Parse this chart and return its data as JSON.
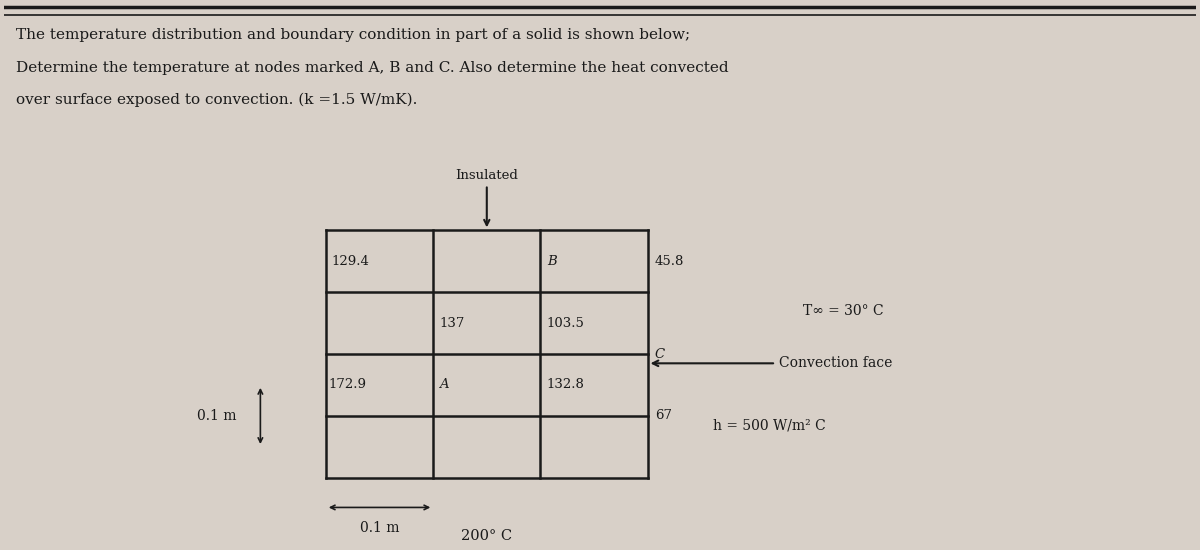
{
  "title_line1": "The temperature distribution and boundary condition in part of a solid is shown below;",
  "title_line2": "Determine the temperature at nodes marked A, B and C. Also determine the heat convected",
  "title_line3": "over surface exposed to convection. (k =1.5 W/mK).",
  "bg_color": "#d8d0c8",
  "insulated_label": "Insulated",
  "t_inf_label": "T∞ = 30° C",
  "convection_face_label": "Convection face",
  "h_label": "h = 500 W/m² C",
  "dim_x_label": "0.1 m",
  "dim_y_label": "0.1 m",
  "temp_bottom_label": "200° C",
  "text_color": "#1a1a1a",
  "gx0": 0.27,
  "gy0": 0.12,
  "cw": 0.09,
  "rh": 0.115,
  "ncols": 3,
  "nrows": 4
}
